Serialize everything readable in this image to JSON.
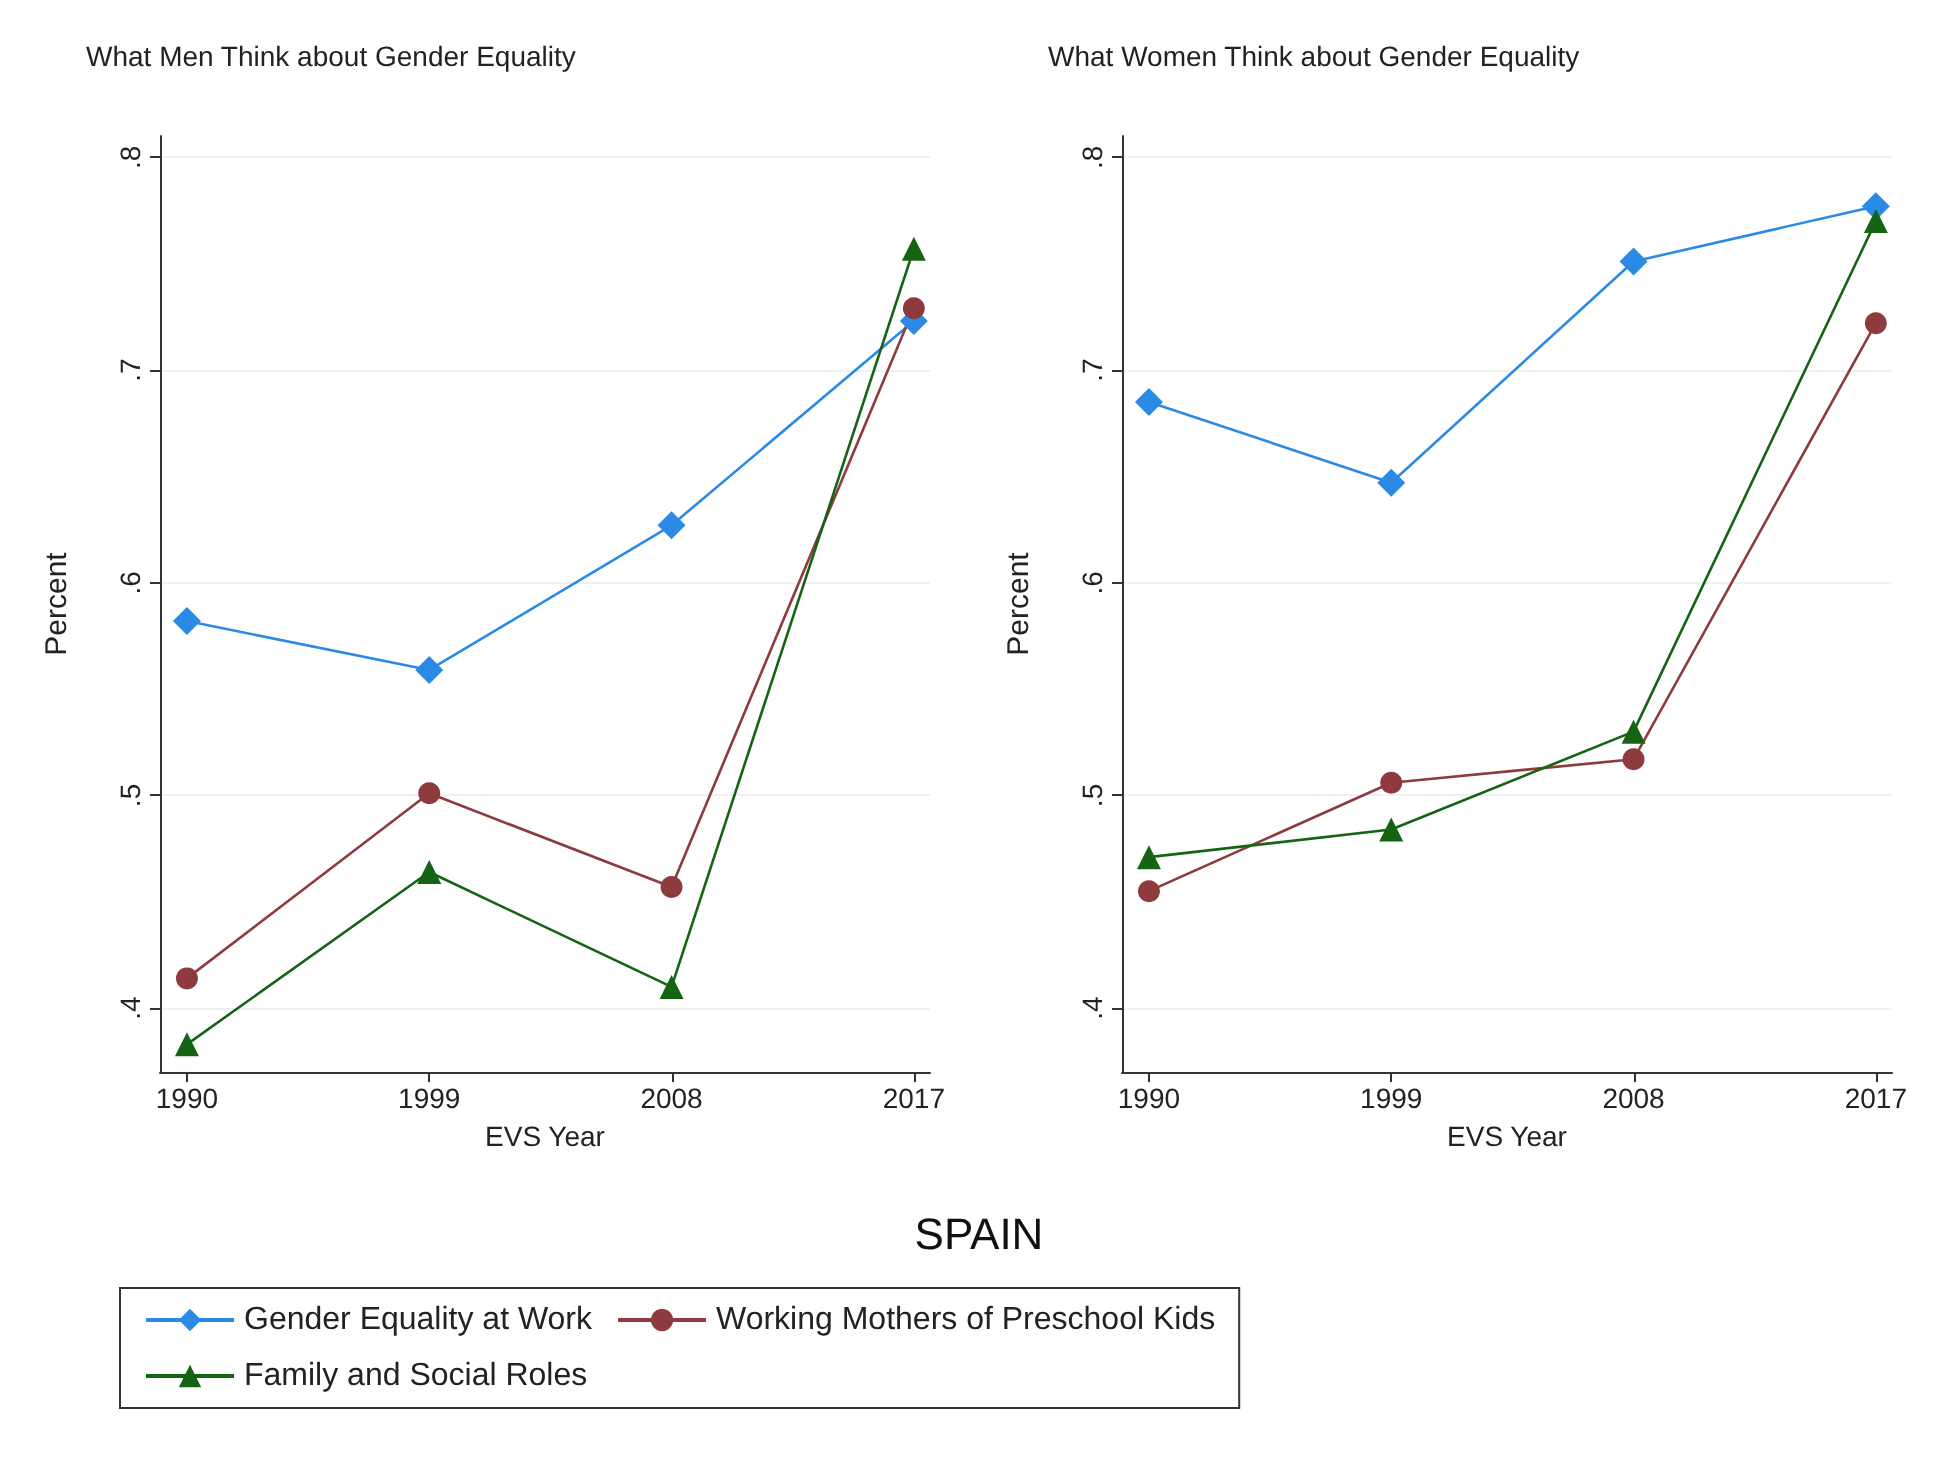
{
  "chart_data": [
    {
      "type": "line",
      "title": "What Men Think about Gender Equality",
      "xlabel": "EVS Year",
      "ylabel": "Percent",
      "x": [
        1990,
        1999,
        2008,
        2017
      ],
      "xlim": [
        1989,
        2017.6
      ],
      "xticks": [
        1990,
        1999,
        2008,
        2017
      ],
      "ylim": [
        0.37,
        0.81
      ],
      "yticks": [
        {
          "value": 0.4,
          "label": ".4"
        },
        {
          "value": 0.5,
          "label": ".5"
        },
        {
          "value": 0.6,
          "label": ".6"
        },
        {
          "value": 0.7,
          "label": ".7"
        },
        {
          "value": 0.8,
          "label": ".8"
        }
      ],
      "grid": "y",
      "legend": "bottom",
      "annotations": [
        "SPAIN"
      ],
      "series": [
        {
          "name": "Gender Equality at Work",
          "color": "#2a8ae6",
          "marker": "diamond",
          "values": [
            0.582,
            0.559,
            0.627,
            0.723
          ]
        },
        {
          "name": "Working Mothers of Preschool Kids",
          "color": "#8e3b3f",
          "marker": "circle",
          "values": [
            0.414,
            0.501,
            0.457,
            0.729
          ]
        },
        {
          "name": "Family and Social Roles",
          "color": "#146414",
          "marker": "triangle",
          "values": [
            0.383,
            0.464,
            0.41,
            0.757
          ]
        }
      ]
    },
    {
      "type": "line",
      "title": "What Women Think about Gender Equality",
      "xlabel": "EVS Year",
      "ylabel": "Percent",
      "x": [
        1990,
        1999,
        2008,
        2017
      ],
      "xlim": [
        1989,
        2017.6
      ],
      "xticks": [
        1990,
        1999,
        2008,
        2017
      ],
      "ylim": [
        0.37,
        0.81
      ],
      "yticks": [
        {
          "value": 0.4,
          "label": ".4"
        },
        {
          "value": 0.5,
          "label": ".5"
        },
        {
          "value": 0.6,
          "label": ".6"
        },
        {
          "value": 0.7,
          "label": ".7"
        },
        {
          "value": 0.8,
          "label": ".8"
        }
      ],
      "grid": "y",
      "legend": "bottom",
      "series": [
        {
          "name": "Gender Equality at Work",
          "color": "#2a8ae6",
          "marker": "diamond",
          "values": [
            0.685,
            0.647,
            0.751,
            0.777
          ]
        },
        {
          "name": "Working Mothers of Preschool Kids",
          "color": "#8e3b3f",
          "marker": "circle",
          "values": [
            0.455,
            0.506,
            0.517,
            0.722
          ]
        },
        {
          "name": "Family and Social Roles",
          "color": "#146414",
          "marker": "triangle",
          "values": [
            0.471,
            0.484,
            0.53,
            0.77
          ]
        }
      ]
    }
  ]
}
